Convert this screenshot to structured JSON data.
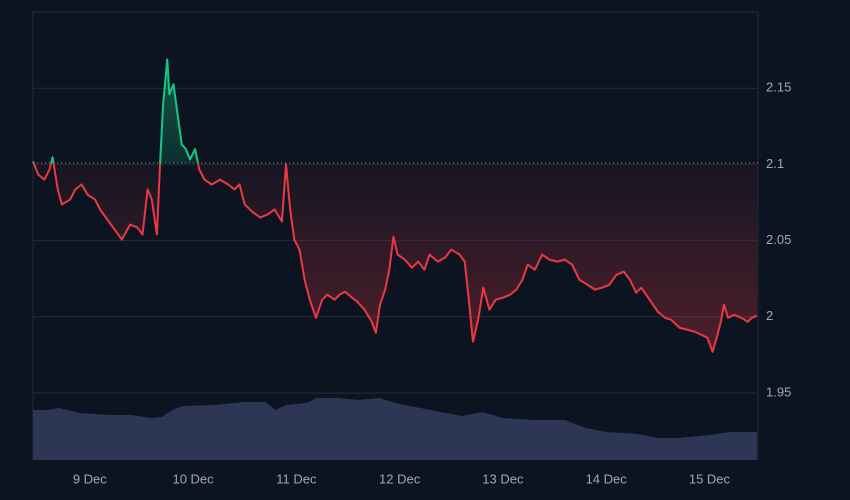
{
  "chart_data": {
    "type": "line",
    "x": [
      8.45,
      8.5,
      8.56,
      8.61,
      8.64,
      8.69,
      8.73,
      8.81,
      8.86,
      8.92,
      8.98,
      9.05,
      9.1,
      9.17,
      9.24,
      9.31,
      9.39,
      9.46,
      9.51,
      9.56,
      9.6,
      9.65,
      9.68,
      9.71,
      9.75,
      9.77,
      9.81,
      9.85,
      9.89,
      9.93,
      9.97,
      10.02,
      10.06,
      10.11,
      10.18,
      10.26,
      10.34,
      10.4,
      10.45,
      10.5,
      10.57,
      10.65,
      10.72,
      10.79,
      10.86,
      10.9,
      10.94,
      10.98,
      11.03,
      11.08,
      11.13,
      11.19,
      11.25,
      11.3,
      11.37,
      11.42,
      11.47,
      11.54,
      11.59,
      11.66,
      11.73,
      11.77,
      11.81,
      11.86,
      11.9,
      11.94,
      11.98,
      12.05,
      12.12,
      12.18,
      12.24,
      12.29,
      12.37,
      12.44,
      12.5,
      12.58,
      12.63,
      12.67,
      12.71,
      12.76,
      12.81,
      12.87,
      12.93,
      13.0,
      13.07,
      13.13,
      13.19,
      13.24,
      13.31,
      13.38,
      13.45,
      13.53,
      13.6,
      13.67,
      13.74,
      13.82,
      13.89,
      13.96,
      14.03,
      14.1,
      14.17,
      14.23,
      14.29,
      14.34,
      14.42,
      14.5,
      14.57,
      14.63,
      14.71,
      14.79,
      14.86,
      14.92,
      14.98,
      15.03,
      15.07,
      15.11,
      15.14,
      15.18,
      15.24,
      15.31,
      15.37,
      15.41,
      15.46
    ],
    "values": [
      2.102,
      2.0934,
      2.09,
      2.0967,
      2.1046,
      2.0836,
      2.0737,
      2.077,
      2.0836,
      2.0868,
      2.08,
      2.077,
      2.0704,
      2.0638,
      2.0572,
      2.0507,
      2.0605,
      2.0586,
      2.054,
      2.0836,
      2.077,
      2.054,
      2.1,
      2.1395,
      2.169,
      2.146,
      2.1526,
      2.1329,
      2.1132,
      2.11,
      2.1033,
      2.11,
      2.0967,
      2.09,
      2.0868,
      2.09,
      2.0868,
      2.0836,
      2.0868,
      2.0737,
      2.0691,
      2.0651,
      2.0671,
      2.0704,
      2.0625,
      2.1,
      2.0704,
      2.0507,
      2.0441,
      2.0243,
      2.0112,
      1.9993,
      2.0112,
      2.0145,
      2.0112,
      2.0145,
      2.0164,
      2.0125,
      2.0099,
      2.0046,
      1.9967,
      1.9895,
      2.0079,
      2.0178,
      2.0309,
      2.0526,
      2.0408,
      2.0375,
      2.0322,
      2.0362,
      2.0309,
      2.0408,
      2.0362,
      2.0388,
      2.0441,
      2.0408,
      2.0362,
      2.0112,
      1.9836,
      1.998,
      2.0191,
      2.0046,
      2.0112,
      2.0125,
      2.0145,
      2.0178,
      2.0243,
      2.0342,
      2.0309,
      2.0408,
      2.0375,
      2.0362,
      2.0375,
      2.0342,
      2.0243,
      2.021,
      2.0178,
      2.0191,
      2.021,
      2.0276,
      2.0296,
      2.0243,
      2.0158,
      2.0191,
      2.0112,
      2.0033,
      1.9993,
      1.998,
      1.9928,
      1.9914,
      1.9901,
      1.9882,
      1.9862,
      1.977,
      1.9862,
      1.9967,
      2.0079,
      1.9993,
      2.0013,
      1.9993,
      1.9967,
      1.9993,
      2.0007
    ],
    "baseline": 2.101,
    "up_color": "#16c784",
    "down_color": "#ea3943",
    "xlim": [
      8.45,
      15.47
    ],
    "xticks": [
      {
        "value": 9,
        "label": "9 Dec"
      },
      {
        "value": 10,
        "label": "10 Dec"
      },
      {
        "value": 11,
        "label": "11 Dec"
      },
      {
        "value": 12,
        "label": "12 Dec"
      },
      {
        "value": 13,
        "label": "13 Dec"
      },
      {
        "value": 14,
        "label": "14 Dec"
      },
      {
        "value": 15,
        "label": "15 Dec"
      }
    ],
    "ylim": [
      1.906,
      2.2
    ],
    "yticks": [
      1.95,
      2.0,
      2.05,
      2.1,
      2.15
    ],
    "grid": true,
    "volume": {
      "color": "#2e3656",
      "x": [
        8.45,
        8.6,
        8.7,
        8.9,
        9.2,
        9.4,
        9.6,
        9.7,
        9.8,
        9.9,
        10.2,
        10.5,
        10.7,
        10.8,
        10.9,
        11.1,
        11.2,
        11.4,
        11.6,
        11.8,
        12.0,
        12.3,
        12.6,
        12.8,
        13.0,
        13.3,
        13.6,
        13.8,
        14.0,
        14.3,
        14.5,
        14.7,
        15.0,
        15.2,
        15.46
      ],
      "values": [
        50,
        50,
        52,
        47,
        45,
        45,
        42,
        43,
        50,
        54,
        55,
        58,
        58,
        50,
        55,
        57,
        62,
        62,
        60,
        62,
        56,
        50,
        44,
        48,
        42,
        40,
        40,
        32,
        28,
        26,
        22,
        22,
        25,
        28,
        28
      ],
      "ylim": [
        0,
        100
      ]
    }
  }
}
